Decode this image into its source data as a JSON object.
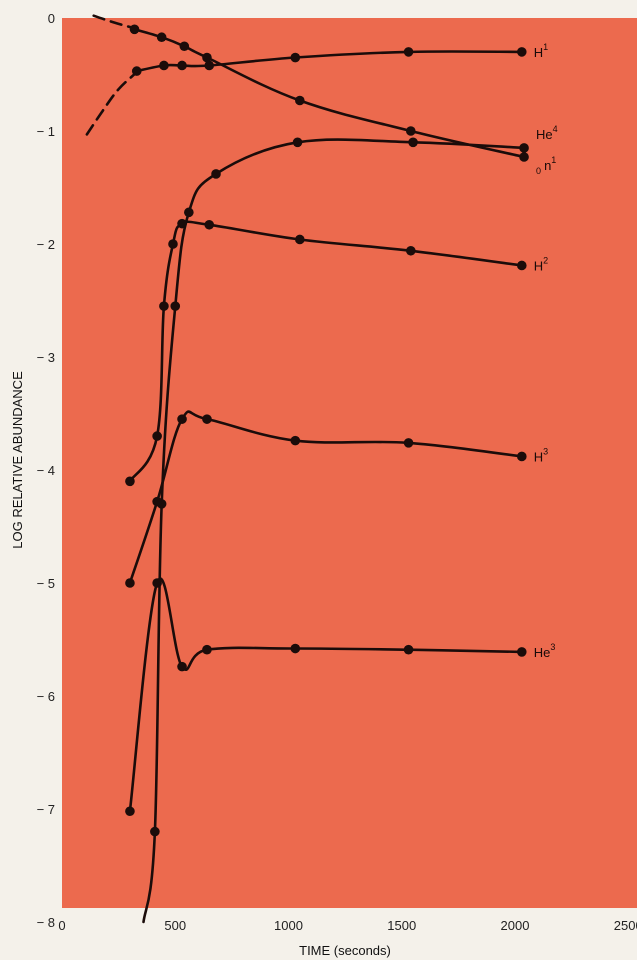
{
  "colors": {
    "plot_bg": "#ec6a4e",
    "page_bg": "#f4f1ea",
    "line": "#1b0c0a"
  },
  "chart_data": {
    "type": "line",
    "title": "",
    "xlabel": "TIME (seconds)",
    "ylabel": "LOG RELATIVE ABUNDANCE",
    "xlim": [
      0,
      2500
    ],
    "ylim": [
      -8,
      0
    ],
    "x_ticks": [
      0,
      500,
      1000,
      1500,
      2000,
      2500
    ],
    "x_tick_labels": [
      "0",
      "500",
      "1000",
      "1500",
      "2000",
      "2500"
    ],
    "y_ticks": [
      0,
      -1,
      -2,
      -3,
      -4,
      -5,
      -6,
      -7,
      -8
    ],
    "y_tick_labels": [
      "0",
      "− 1",
      "− 2",
      "− 3",
      "− 4",
      "− 5",
      "− 6",
      "− 7",
      "− 8"
    ],
    "grid": false,
    "legend": "none",
    "series": [
      {
        "name": "H1",
        "label_base": "H",
        "label_sup": "1",
        "label_pre": "",
        "dashed_prefix": [
          [
            110,
            -1.03
          ],
          [
            180,
            -0.82
          ],
          [
            250,
            -0.63
          ],
          [
            330,
            -0.48
          ]
        ],
        "x": [
          330,
          450,
          530,
          650,
          1030,
          1530,
          2030
        ],
        "y": [
          -0.47,
          -0.42,
          -0.42,
          -0.42,
          -0.35,
          -0.3,
          -0.3
        ],
        "marker_from": 0
      },
      {
        "name": "n1",
        "label_base": "n",
        "label_sup": "1",
        "label_pre": "0",
        "dashed_prefix": [
          [
            140,
            0.02
          ],
          [
            230,
            -0.04
          ],
          [
            320,
            -0.09
          ]
        ],
        "x": [
          320,
          440,
          540,
          640,
          1050,
          1540,
          2040
        ],
        "y": [
          -0.1,
          -0.17,
          -0.25,
          -0.35,
          -0.73,
          -1.0,
          -1.23
        ],
        "marker_from": 0
      },
      {
        "name": "He4",
        "label_base": "He",
        "label_sup": "4",
        "label_pre": "",
        "x": [
          360,
          410,
          440,
          500,
          560,
          680,
          1040,
          1550,
          2040
        ],
        "y": [
          -8.0,
          -7.2,
          -4.3,
          -2.55,
          -1.72,
          -1.38,
          -1.1,
          -1.1,
          -1.15
        ],
        "marker_from": 1
      },
      {
        "name": "H2",
        "label_base": "H",
        "label_sup": "2",
        "label_pre": "",
        "x": [
          300,
          420,
          450,
          490,
          530,
          650,
          1050,
          1540,
          2030
        ],
        "y": [
          -4.1,
          -3.7,
          -2.55,
          -2.0,
          -1.82,
          -1.83,
          -1.96,
          -2.06,
          -2.19
        ],
        "marker_from": 0
      },
      {
        "name": "H3",
        "label_base": "H",
        "label_sup": "3",
        "label_pre": "",
        "x": [
          300,
          420,
          530,
          640,
          1030,
          1530,
          2030
        ],
        "y": [
          -5.0,
          -4.28,
          -3.55,
          -3.55,
          -3.74,
          -3.76,
          -3.88
        ],
        "marker_from": 0
      },
      {
        "name": "He3",
        "label_base": "He",
        "label_sup": "3",
        "label_pre": "",
        "x": [
          300,
          420,
          530,
          640,
          1030,
          1530,
          2030
        ],
        "y": [
          -7.02,
          -5.0,
          -5.74,
          -5.59,
          -5.58,
          -5.59,
          -5.61
        ],
        "marker_from": 0
      }
    ]
  }
}
